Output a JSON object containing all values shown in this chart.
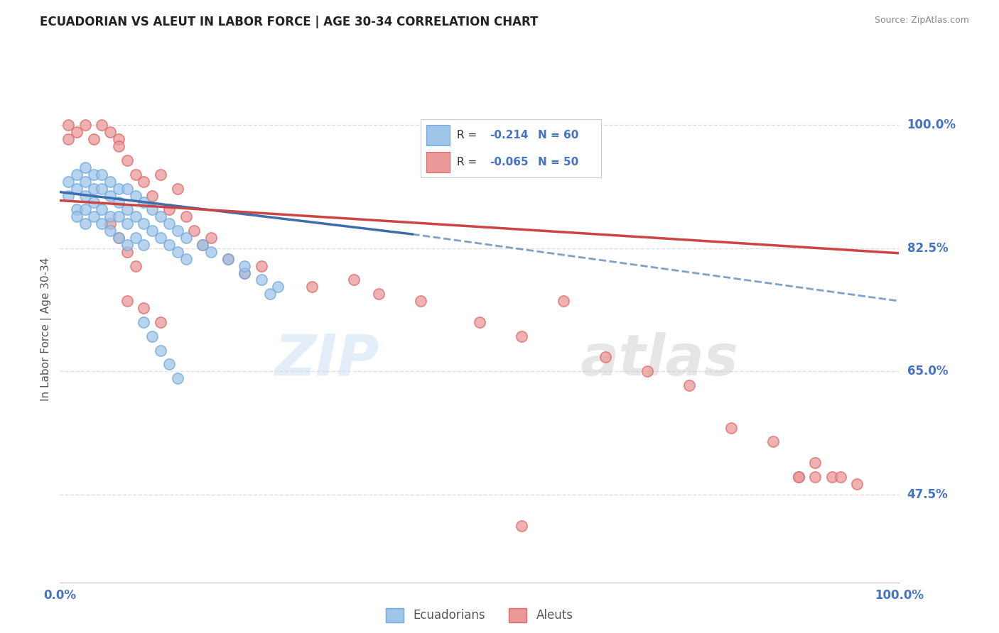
{
  "title": "ECUADORIAN VS ALEUT IN LABOR FORCE | AGE 30-34 CORRELATION CHART",
  "source": "Source: ZipAtlas.com",
  "ylabel": "In Labor Force | Age 30-34",
  "xlim": [
    0.0,
    1.0
  ],
  "ylim": [
    0.35,
    1.07
  ],
  "x_tick_labels": [
    "0.0%",
    "100.0%"
  ],
  "y_tick_labels": [
    "47.5%",
    "65.0%",
    "82.5%",
    "100.0%"
  ],
  "y_tick_positions": [
    0.475,
    0.65,
    0.825,
    1.0
  ],
  "blue_color": "#9fc5e8",
  "pink_color": "#ea9999",
  "blue_scatter_edge": "#6fa8dc",
  "pink_scatter_edge": "#e06666",
  "blue_line_color": "#3d6dab",
  "pink_line_color": "#cc4444",
  "label_color": "#4472c4",
  "background_color": "#ffffff",
  "grid_color": "#dddddd",
  "blue_line_start_x": 0.0,
  "blue_line_start_y": 0.905,
  "blue_line_solid_end_x": 0.42,
  "blue_line_solid_end_y": 0.845,
  "blue_line_dash_end_x": 1.0,
  "blue_line_dash_end_y": 0.75,
  "pink_line_start_x": 0.0,
  "pink_line_start_y": 0.893,
  "pink_line_end_x": 1.0,
  "pink_line_end_y": 0.818,
  "ecu_x": [
    0.01,
    0.01,
    0.02,
    0.02,
    0.02,
    0.02,
    0.03,
    0.03,
    0.03,
    0.03,
    0.03,
    0.04,
    0.04,
    0.04,
    0.04,
    0.05,
    0.05,
    0.05,
    0.05,
    0.06,
    0.06,
    0.06,
    0.06,
    0.07,
    0.07,
    0.07,
    0.07,
    0.08,
    0.08,
    0.08,
    0.08,
    0.09,
    0.09,
    0.09,
    0.1,
    0.1,
    0.1,
    0.11,
    0.11,
    0.12,
    0.12,
    0.13,
    0.13,
    0.14,
    0.14,
    0.15,
    0.15,
    0.17,
    0.18,
    0.2,
    0.22,
    0.24,
    0.26,
    0.1,
    0.11,
    0.12,
    0.13,
    0.14,
    0.22,
    0.25
  ],
  "ecu_y": [
    0.92,
    0.9,
    0.93,
    0.91,
    0.88,
    0.87,
    0.94,
    0.92,
    0.9,
    0.88,
    0.86,
    0.93,
    0.91,
    0.89,
    0.87,
    0.93,
    0.91,
    0.88,
    0.86,
    0.92,
    0.9,
    0.87,
    0.85,
    0.91,
    0.89,
    0.87,
    0.84,
    0.91,
    0.88,
    0.86,
    0.83,
    0.9,
    0.87,
    0.84,
    0.89,
    0.86,
    0.83,
    0.88,
    0.85,
    0.87,
    0.84,
    0.86,
    0.83,
    0.85,
    0.82,
    0.84,
    0.81,
    0.83,
    0.82,
    0.81,
    0.79,
    0.78,
    0.77,
    0.72,
    0.7,
    0.68,
    0.66,
    0.64,
    0.8,
    0.76
  ],
  "ale_x": [
    0.01,
    0.01,
    0.02,
    0.03,
    0.04,
    0.05,
    0.06,
    0.07,
    0.07,
    0.08,
    0.09,
    0.1,
    0.11,
    0.12,
    0.13,
    0.14,
    0.15,
    0.16,
    0.17,
    0.18,
    0.2,
    0.22,
    0.24,
    0.3,
    0.35,
    0.38,
    0.43,
    0.5,
    0.55,
    0.6,
    0.65,
    0.7,
    0.75,
    0.8,
    0.85,
    0.88,
    0.9,
    0.92,
    0.93,
    0.95,
    0.06,
    0.07,
    0.08,
    0.09,
    0.08,
    0.1,
    0.12,
    0.55,
    0.88,
    0.9
  ],
  "ale_y": [
    1.0,
    0.98,
    0.99,
    1.0,
    0.98,
    1.0,
    0.99,
    0.98,
    0.97,
    0.95,
    0.93,
    0.92,
    0.9,
    0.93,
    0.88,
    0.91,
    0.87,
    0.85,
    0.83,
    0.84,
    0.81,
    0.79,
    0.8,
    0.77,
    0.78,
    0.76,
    0.75,
    0.72,
    0.7,
    0.75,
    0.67,
    0.65,
    0.63,
    0.57,
    0.55,
    0.5,
    0.52,
    0.5,
    0.5,
    0.49,
    0.86,
    0.84,
    0.82,
    0.8,
    0.75,
    0.74,
    0.72,
    0.43,
    0.5,
    0.5
  ]
}
